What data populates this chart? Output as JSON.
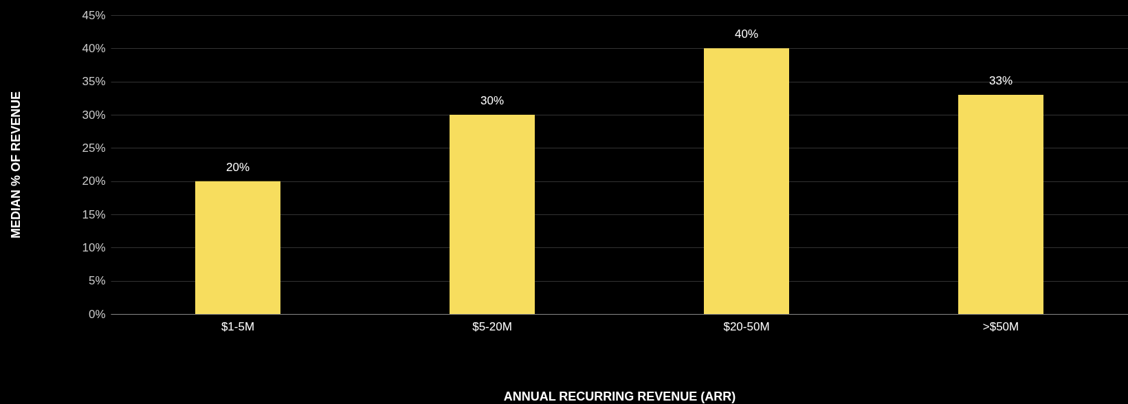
{
  "chart_data": {
    "type": "bar",
    "xlabel": "ANNUAL RECURRING REVENUE (ARR)",
    "ylabel": "MEDIAN % OF REVENUE",
    "categories": [
      "$1-5M",
      "$5-20M",
      "$20-50M",
      ">$50M"
    ],
    "values": [
      20,
      30,
      40,
      33
    ],
    "value_labels": [
      "20%",
      "30%",
      "40%",
      "33%"
    ],
    "color": "#f7dd5e",
    "ylim": [
      0,
      45
    ],
    "yticks": [
      {
        "value": 0,
        "label": "0%"
      },
      {
        "value": 5,
        "label": "5%"
      },
      {
        "value": 10,
        "label": "10%"
      },
      {
        "value": 15,
        "label": "15%"
      },
      {
        "value": 20,
        "label": "20%"
      },
      {
        "value": 25,
        "label": "25%"
      },
      {
        "value": 30,
        "label": "30%"
      },
      {
        "value": 35,
        "label": "35%"
      },
      {
        "value": 40,
        "label": "40%"
      },
      {
        "value": 45,
        "label": "45%"
      }
    ],
    "grid": "y"
  }
}
